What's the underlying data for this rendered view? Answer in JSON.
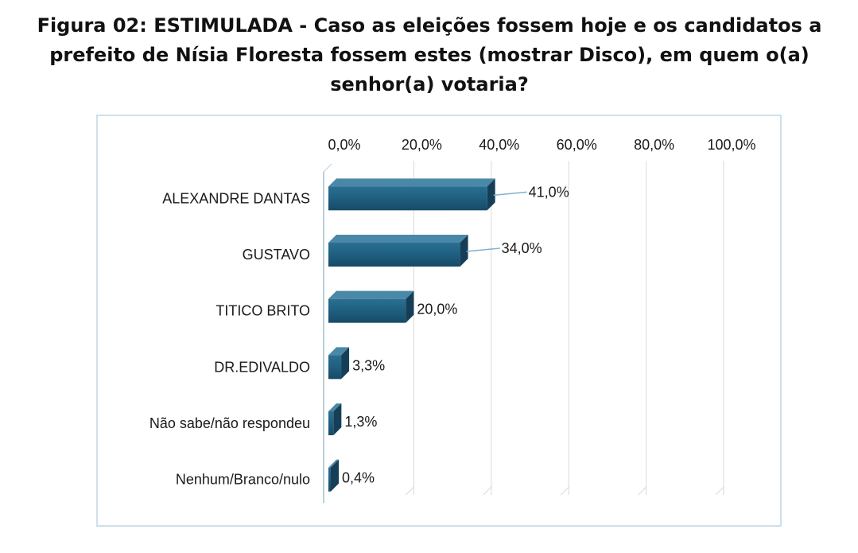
{
  "title": "Figura 02: ESTIMULADA - Caso as eleições fossem hoje e os candidatos a prefeito de Nísia Floresta fossem estes (mostrar Disco), em quem o(a) senhor(a) votaria?",
  "chart_data": {
    "type": "bar",
    "orientation": "horizontal",
    "categories": [
      "ALEXANDRE DANTAS",
      "GUSTAVO",
      "TITICO BRITO",
      "DR.EDIVALDO",
      "Não sabe/não respondeu",
      "Nenhum/Branco/nulo"
    ],
    "values": [
      41.0,
      34.0,
      20.0,
      3.3,
      1.3,
      0.4
    ],
    "data_labels": [
      "41,0%",
      "34,0%",
      "20,0%",
      "3,3%",
      "1,3%",
      "0,4%"
    ],
    "x_ticks": [
      "0,0%",
      "20,0%",
      "40,0%",
      "60,0%",
      "80,0%",
      "100,0%"
    ],
    "xlim": [
      0,
      100
    ],
    "axis_position": "top",
    "grid": true,
    "bar_color": "#1f5f80",
    "bar_style": "3d",
    "xlabel": "",
    "ylabel": ""
  }
}
